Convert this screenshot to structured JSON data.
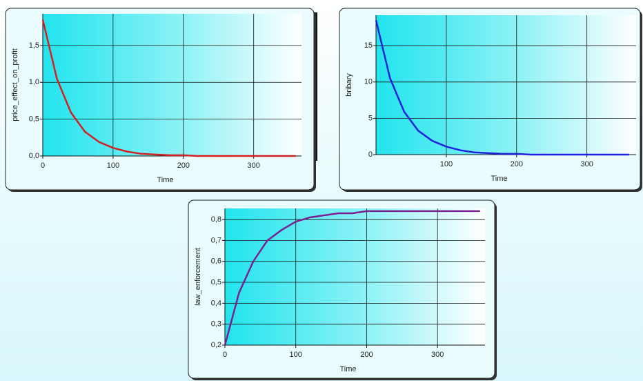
{
  "chart_data": [
    {
      "type": "line",
      "xlabel": "Time",
      "ylabel": "price_effect_on_profit",
      "color": "#d42020",
      "x": [
        0,
        20,
        40,
        60,
        80,
        100,
        120,
        140,
        160,
        180,
        200,
        220,
        240,
        260,
        280,
        300,
        320,
        340,
        360
      ],
      "values": [
        1.85,
        1.05,
        0.59,
        0.33,
        0.19,
        0.11,
        0.06,
        0.03,
        0.02,
        0.01,
        0.01,
        0,
        0,
        0,
        0,
        0,
        0,
        0,
        0
      ],
      "xlim": [
        0,
        368
      ],
      "ylim": [
        0,
        1.93
      ],
      "xticks": [
        0,
        100,
        200,
        300
      ],
      "yticks": [
        {
          "value": 0,
          "label": "0,0"
        },
        {
          "value": 0.5,
          "label": "0,5"
        },
        {
          "value": 1,
          "label": "1,0"
        },
        {
          "value": 1.5,
          "label": "1,5"
        }
      ],
      "grid": true
    },
    {
      "type": "line",
      "xlabel": "Time",
      "ylabel": "bribary",
      "color": "#2020e0",
      "x": [
        0,
        20,
        40,
        60,
        80,
        100,
        120,
        140,
        160,
        180,
        200,
        220,
        240,
        260,
        280,
        300,
        320,
        340,
        360
      ],
      "values": [
        18.5,
        10.5,
        5.9,
        3.3,
        1.9,
        1.1,
        0.6,
        0.3,
        0.2,
        0.1,
        0.1,
        0,
        0,
        0,
        0,
        0,
        0,
        0,
        0
      ],
      "xlim": [
        0,
        370
      ],
      "ylim": [
        0,
        19.2
      ],
      "xticks": [
        100,
        200,
        300
      ],
      "yticks": [
        0,
        5,
        10,
        15
      ],
      "grid": true
    },
    {
      "type": "line",
      "xlabel": "Time",
      "ylabel": "law_enforcement",
      "color": "#7a2090",
      "x": [
        0,
        20,
        40,
        60,
        80,
        100,
        120,
        140,
        160,
        180,
        200,
        220,
        240,
        260,
        280,
        300,
        320,
        340,
        360
      ],
      "values": [
        0.2,
        0.45,
        0.6,
        0.7,
        0.75,
        0.79,
        0.81,
        0.82,
        0.83,
        0.83,
        0.84,
        0.84,
        0.84,
        0.84,
        0.84,
        0.84,
        0.84,
        0.84,
        0.84
      ],
      "xlim": [
        0,
        367
      ],
      "ylim": [
        0.2,
        0.853
      ],
      "xticks": [
        0,
        100,
        200,
        300
      ],
      "yticks": [
        {
          "value": 0.2,
          "label": "0,2"
        },
        {
          "value": 0.3,
          "label": "0,3"
        },
        {
          "value": 0.4,
          "label": "0,4"
        },
        {
          "value": 0.5,
          "label": "0,5"
        },
        {
          "value": 0.6,
          "label": "0,6"
        },
        {
          "value": 0.7,
          "label": "0,7"
        },
        {
          "value": 0.8,
          "label": "0,8"
        }
      ],
      "grid": true
    }
  ]
}
